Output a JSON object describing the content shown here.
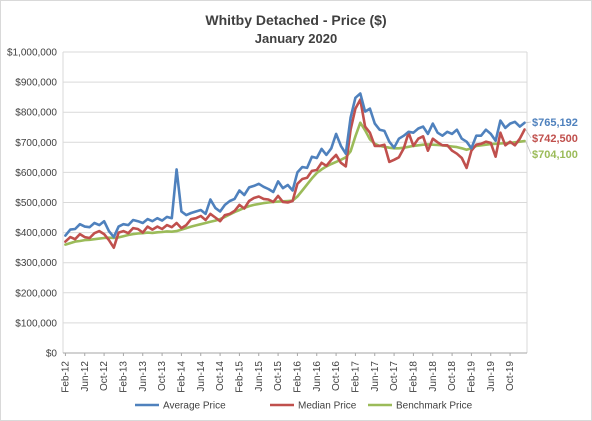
{
  "chart_data": {
    "type": "line",
    "title": "Whitby Detached - Price ($)",
    "subtitle": "January 2020",
    "xlabel": "",
    "ylabel": "",
    "ylim": [
      0,
      1000000
    ],
    "y_ticks": [
      "$0",
      "$100,000",
      "$200,000",
      "$300,000",
      "$400,000",
      "$500,000",
      "$600,000",
      "$700,000",
      "$800,000",
      "$900,000",
      "$1,000,000"
    ],
    "x_ticks": [
      "Feb-12",
      "Jun-12",
      "Oct-12",
      "Feb-13",
      "Jun-13",
      "Oct-13",
      "Feb-14",
      "Jun-14",
      "Oct-14",
      "Feb-15",
      "Jun-15",
      "Oct-15",
      "Feb-16",
      "Jun-16",
      "Oct-16",
      "Feb-17",
      "Jun-17",
      "Oct-17",
      "Feb-18",
      "Jun-18",
      "Oct-18",
      "Feb-19",
      "Jun-19",
      "Oct-19"
    ],
    "x_start": "Feb-12",
    "x_end": "Jan-20",
    "grid": true,
    "legend_position": "bottom",
    "end_labels": [
      "$765,192",
      "$742,500",
      "$704,100"
    ],
    "series": [
      {
        "name": "Average Price",
        "color": "#4f81bd",
        "values": [
          390000,
          410000,
          412000,
          428000,
          420000,
          418000,
          432000,
          425000,
          438000,
          405000,
          385000,
          420000,
          428000,
          425000,
          442000,
          438000,
          432000,
          445000,
          438000,
          448000,
          440000,
          452000,
          448000,
          610000,
          470000,
          458000,
          465000,
          470000,
          475000,
          462000,
          510000,
          482000,
          470000,
          492000,
          505000,
          512000,
          540000,
          525000,
          550000,
          555000,
          562000,
          552000,
          545000,
          535000,
          570000,
          548000,
          558000,
          540000,
          600000,
          618000,
          615000,
          652000,
          648000,
          678000,
          658000,
          680000,
          728000,
          688000,
          662000,
          782000,
          848000,
          862000,
          802000,
          812000,
          762000,
          742000,
          738000,
          702000,
          682000,
          712000,
          722000,
          735000,
          732000,
          746000,
          752000,
          728000,
          762000,
          732000,
          722000,
          735000,
          728000,
          742000,
          712000,
          702000,
          680000,
          722000,
          722000,
          742000,
          728000,
          705000,
          772000,
          748000,
          762000,
          768000,
          752000,
          765192
        ]
      },
      {
        "name": "Median Price",
        "color": "#c0504d",
        "values": [
          370000,
          385000,
          378000,
          395000,
          385000,
          382000,
          398000,
          405000,
          395000,
          375000,
          350000,
          400000,
          405000,
          398000,
          415000,
          412000,
          400000,
          420000,
          410000,
          420000,
          412000,
          425000,
          418000,
          432000,
          415000,
          425000,
          445000,
          448000,
          455000,
          442000,
          462000,
          450000,
          438000,
          458000,
          462000,
          472000,
          492000,
          480000,
          505000,
          515000,
          520000,
          512000,
          510000,
          502000,
          522000,
          502000,
          500000,
          505000,
          562000,
          578000,
          582000,
          605000,
          608000,
          632000,
          622000,
          642000,
          658000,
          632000,
          620000,
          742000,
          812000,
          842000,
          752000,
          732000,
          688000,
          688000,
          692000,
          635000,
          642000,
          650000,
          680000,
          732000,
          688000,
          712000,
          720000,
          672000,
          712000,
          700000,
          690000,
          690000,
          672000,
          662000,
          648000,
          615000,
          672000,
          692000,
          695000,
          702000,
          698000,
          652000,
          732000,
          690000,
          702000,
          690000,
          712000,
          742500
        ]
      },
      {
        "name": "Benchmark Price",
        "color": "#9bbb59",
        "values": [
          360000,
          365000,
          370000,
          372000,
          375000,
          376000,
          378000,
          380000,
          382000,
          383000,
          382000,
          384000,
          388000,
          392000,
          395000,
          397000,
          398000,
          400000,
          399000,
          401000,
          402000,
          404000,
          403000,
          405000,
          410000,
          415000,
          420000,
          424000,
          428000,
          432000,
          436000,
          440000,
          445000,
          452000,
          460000,
          468000,
          475000,
          482000,
          488000,
          492000,
          495000,
          498000,
          500000,
          502000,
          503000,
          504000,
          505000,
          506000,
          520000,
          540000,
          560000,
          580000,
          598000,
          610000,
          620000,
          628000,
          635000,
          642000,
          650000,
          670000,
          720000,
          765000,
          740000,
          710000,
          695000,
          688000,
          685000,
          682000,
          680000,
          680000,
          682000,
          685000,
          688000,
          690000,
          692000,
          693000,
          692000,
          691000,
          690000,
          688000,
          686000,
          684000,
          680000,
          675000,
          680000,
          688000,
          690000,
          692000,
          694000,
          695000,
          696000,
          697000,
          698000,
          700000,
          702000,
          704100
        ]
      }
    ]
  }
}
